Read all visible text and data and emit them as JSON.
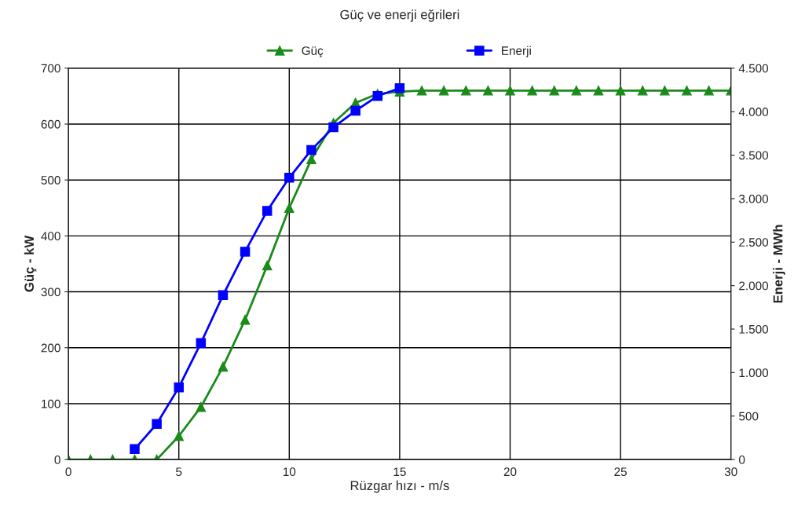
{
  "chart_data": {
    "type": "line",
    "title": "Güç ve enerji eğrileri",
    "xlabel": "Rüzgar hızı - m/s",
    "ylabel": "Güç - kW",
    "y2label": "Enerji - MWh",
    "xlim": [
      0,
      30
    ],
    "xticks": [
      0,
      5,
      10,
      15,
      20,
      25,
      30
    ],
    "ylim": [
      0,
      700
    ],
    "yticks": [
      0,
      100,
      200,
      300,
      400,
      500,
      600,
      700
    ],
    "y2lim": [
      0,
      4500
    ],
    "y2ticks": [
      0,
      500,
      {
        "value": 1000,
        "label": "1.000"
      },
      {
        "value": 1500,
        "label": "1.500"
      },
      {
        "value": 2000,
        "label": "2.000"
      },
      {
        "value": 2500,
        "label": "2.500"
      },
      {
        "value": 3000,
        "label": "3.000"
      },
      {
        "value": 3500,
        "label": "3.500"
      },
      {
        "value": 4000,
        "label": "4.000"
      },
      {
        "value": 4500,
        "label": "4.500"
      }
    ],
    "grid": true,
    "legend": "top",
    "series": [
      {
        "name": "Güç",
        "color": "#1a8a1a",
        "marker": "triangle",
        "x": [
          0,
          1,
          2,
          3,
          4,
          5,
          6,
          7,
          8,
          9,
          10,
          11,
          12,
          13,
          14,
          15,
          16,
          17,
          18,
          19,
          20,
          21,
          22,
          23,
          24,
          25,
          26,
          27,
          28,
          29,
          30
        ],
        "values": [
          0,
          0,
          0,
          0,
          0,
          42,
          94,
          166,
          250,
          347,
          450,
          537,
          602,
          638,
          654,
          658,
          660,
          660,
          660,
          660,
          660,
          660,
          660,
          660,
          660,
          660,
          660,
          660,
          660,
          660,
          660
        ]
      },
      {
        "name": "Enerji",
        "color": "#0000ff",
        "marker": "square",
        "axis": "y2",
        "x": [
          3,
          4,
          5,
          6,
          7,
          8,
          9,
          10,
          11,
          12,
          13,
          14,
          15
        ],
        "values": [
          120,
          410,
          830,
          1340,
          1890,
          2390,
          2860,
          3240,
          3560,
          3820,
          4010,
          4180,
          4270
        ]
      }
    ]
  }
}
